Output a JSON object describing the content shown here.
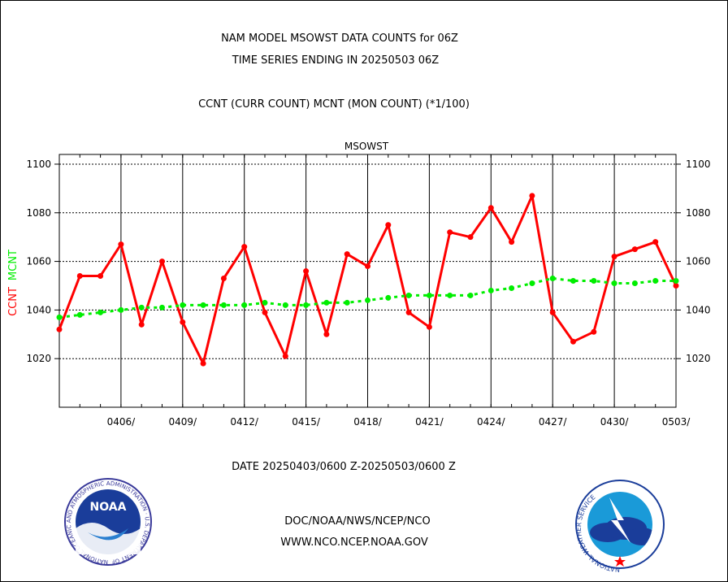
{
  "header": {
    "title_line1": "NAM MODEL MSOWST DATA COUNTS for 06Z",
    "title_line2": "TIME SERIES ENDING IN 20250503 06Z",
    "subtitle": "CCNT (CURR COUNT) MCNT (MON COUNT) (*1/100)"
  },
  "footer": {
    "date_range": "DATE 20250403/0600 Z-20250503/0600 Z",
    "org_path": "DOC/NOAA/NWS/NCEP/NCO",
    "website": "WWW.NCO.NCEP.NOAA.GOV"
  },
  "logos": {
    "noaa_text": "NOAA",
    "noaa_ring": "NATIONAL OCEANIC AND ATMOSPHERIC ADMINISTRATION · U.S. DEPARTMENT OF COMMERCE ·",
    "nws_ring": "NATIONAL WEATHER SERVICE"
  },
  "colors": {
    "ccnt": "#ff0000",
    "mcnt": "#00ee00",
    "plot_label": "#0000cc",
    "date_range": "#ff0000",
    "footer_text": "#0000cc"
  },
  "chart_data": {
    "type": "line",
    "plot_label": "MSOWST",
    "ylabel_parts": [
      "CCNT",
      "MCNT"
    ],
    "ylim": [
      1000,
      1104
    ],
    "yticks": [
      1020,
      1040,
      1060,
      1080,
      1100
    ],
    "ytick_labels": [
      "1020",
      "1040",
      "1060",
      "1080",
      "1100"
    ],
    "xlim": [
      0,
      30
    ],
    "xticks": [
      3,
      6,
      9,
      12,
      15,
      18,
      21,
      24,
      27,
      30
    ],
    "xtick_labels": [
      "0406/",
      "0409/",
      "0412/",
      "0415/",
      "0418/",
      "0421/",
      "0424/",
      "0427/",
      "0430/",
      "0503/"
    ],
    "grid": true,
    "x": [
      0,
      1,
      2,
      3,
      4,
      5,
      6,
      7,
      8,
      9,
      10,
      11,
      12,
      13,
      14,
      15,
      16,
      17,
      18,
      19,
      20,
      21,
      22,
      23,
      24,
      25,
      26,
      27,
      28,
      29,
      30
    ],
    "series": [
      {
        "name": "CCNT",
        "values": [
          1032,
          1054,
          1054,
          1067,
          1034,
          1060,
          1035,
          1018,
          1053,
          1066,
          1039,
          1021,
          1056,
          1030,
          1063,
          1058,
          1075,
          1039,
          1033,
          1072,
          1070,
          1082,
          1068,
          1087,
          1039,
          1027,
          1031,
          1062,
          1065,
          1068,
          1050
        ]
      },
      {
        "name": "MCNT",
        "values": [
          1037,
          1038,
          1039,
          1040,
          1041,
          1041,
          1042,
          1042,
          1042,
          1042,
          1043,
          1042,
          1042,
          1043,
          1043,
          1044,
          1045,
          1046,
          1046,
          1046,
          1046,
          1048,
          1049,
          1051,
          1053,
          1052,
          1052,
          1051,
          1051,
          1052,
          1052
        ]
      }
    ]
  }
}
